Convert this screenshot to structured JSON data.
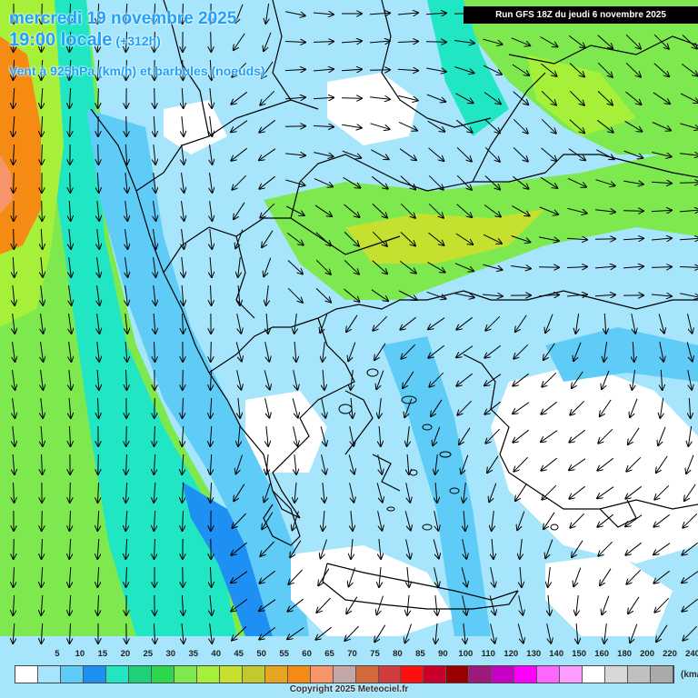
{
  "header": {
    "date_line": "mercredi 19 novembre 2025",
    "time_line": "19:00 locale",
    "lead_hours": "(+312h)",
    "parameter": "Vent à 925hPa (km/h) et barbules (noeuds)",
    "run_info": "Run GFS 18Z du jeudi 6 novembre 2025"
  },
  "legend": {
    "unit": "(km/h)",
    "labels": [
      "5",
      "10",
      "15",
      "20",
      "25",
      "30",
      "35",
      "40",
      "45",
      "50",
      "55",
      "60",
      "65",
      "70",
      "75",
      "80",
      "85",
      "90",
      "100",
      "110",
      "120",
      "130",
      "140",
      "150",
      "160",
      "180",
      "200",
      "220",
      "240"
    ],
    "colors": [
      "#ffffff",
      "#a6e5fb",
      "#5fccf7",
      "#1f90f3",
      "#21e6c4",
      "#1fcf7a",
      "#2bd84c",
      "#7de94e",
      "#a6f03a",
      "#c6e02f",
      "#c3c92b",
      "#e6a41f",
      "#f58b12",
      "#f7946a",
      "#c4a7a7",
      "#d36a3b",
      "#d13c3c",
      "#ff1010",
      "#c8002b",
      "#9b0000",
      "#9c1a7c",
      "#c800c8",
      "#ff00ff",
      "#ff66ff",
      "#ff9cff",
      "#ffffff",
      "#d8d8d8",
      "#c0c0c0",
      "#aaaaaa"
    ]
  },
  "footer": {
    "copyright": "Copyright 2025 Meteociel.fr"
  }
}
